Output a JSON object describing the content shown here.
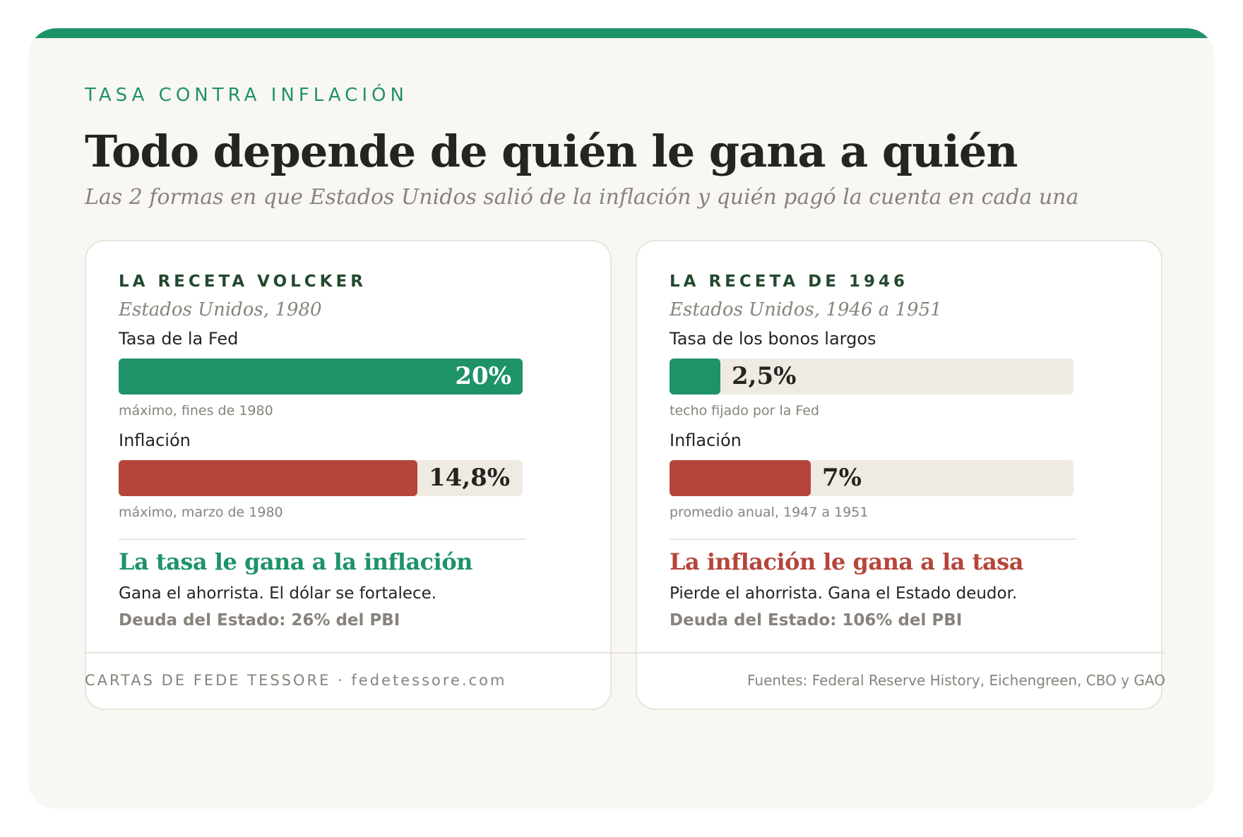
{
  "kicker": "TASA CONTRA INFLACIÓN",
  "title": "Todo depende de quién le gana a quién",
  "subtitle": "Las 2 formas en que Estados Unidos salió de la inflación y quién pagó la cuenta en cada una",
  "colors": {
    "accent_green": "#1f9368",
    "accent_red": "#b5453b",
    "track": "#efebe3",
    "background": "#f8f7f3"
  },
  "panels": [
    {
      "label": "LA RECETA VOLCKER",
      "sub": "Estados Unidos, 1980",
      "metrics": [
        {
          "name": "Tasa de la Fed",
          "value_label": "20%",
          "note": "máximo, fines de 1980",
          "color": "green"
        },
        {
          "name": "Inflación",
          "value_label": "14,8%",
          "note": "máximo, marzo de 1980",
          "color": "red"
        }
      ],
      "verdict": "La tasa le gana a la inflación",
      "verdict_color": "green",
      "outcome": "Gana el ahorrista. El dólar se fortalece.",
      "debt": "Deuda del Estado: 26% del PBI"
    },
    {
      "label": "LA RECETA DE 1946",
      "sub": "Estados Unidos, 1946 a 1951",
      "metrics": [
        {
          "name": "Tasa de los bonos largos",
          "value_label": "2,5%",
          "note": "techo fijado por la Fed",
          "color": "green"
        },
        {
          "name": "Inflación",
          "value_label": "7%",
          "note": "promedio anual, 1947 a 1951",
          "color": "red"
        }
      ],
      "verdict": "La inflación le gana a la tasa",
      "verdict_color": "red",
      "outcome": "Pierde el ahorrista. Gana el Estado deudor.",
      "debt": "Deuda del Estado: 106% del PBI"
    }
  ],
  "chart_data": [
    {
      "type": "bar",
      "orientation": "horizontal",
      "categories": [
        "Tasa de la Fed",
        "Inflación"
      ],
      "values": [
        20,
        14.8
      ],
      "xlim": [
        0,
        20
      ]
    },
    {
      "type": "bar",
      "orientation": "horizontal",
      "categories": [
        "Tasa de los bonos largos",
        "Inflación"
      ],
      "values": [
        2.5,
        7
      ],
      "xlim": [
        0,
        20
      ]
    }
  ],
  "footer": {
    "left": "CARTAS DE FEDE TESSORE · fedetessore.com",
    "right": "Fuentes: Federal Reserve History, Eichengreen, CBO y GAO"
  }
}
